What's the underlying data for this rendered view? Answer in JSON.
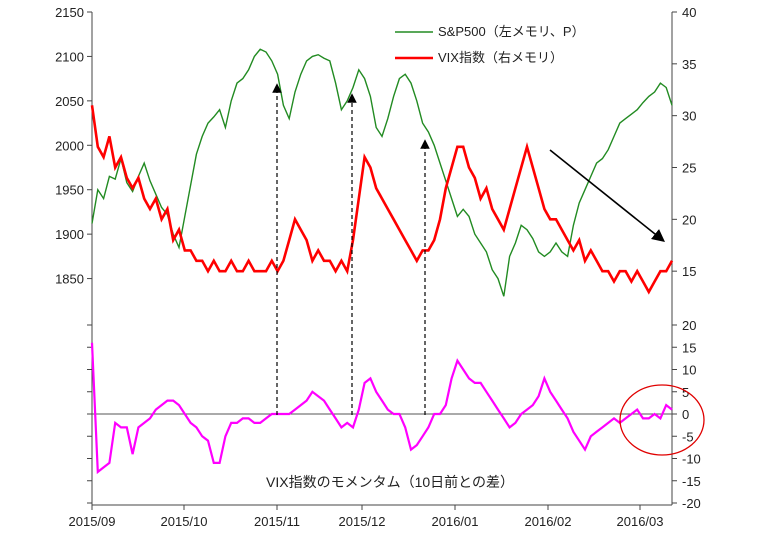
{
  "chart_data": {
    "type": "line",
    "x_labels": [
      "2015/09",
      "2015/10",
      "2015/11",
      "2015/12",
      "2016/01",
      "2016/02",
      "2016/03"
    ],
    "top_panel": {
      "left_axis": {
        "ylim": [
          1800,
          2150
        ],
        "ticks": [
          1850,
          1900,
          1950,
          2000,
          2050,
          2100,
          2150
        ]
      },
      "right_axis": {
        "ylim": [
          10,
          40
        ],
        "ticks": [
          15,
          20,
          25,
          30,
          35,
          40
        ]
      },
      "series": [
        {
          "name": "S&P500（左メモリ、P）",
          "axis": "left",
          "color": "#228b22",
          "values": [
            1912,
            1950,
            1940,
            1965,
            1962,
            1985,
            1958,
            1948,
            1965,
            1980,
            1960,
            1945,
            1930,
            1922,
            1900,
            1885,
            1920,
            1955,
            1990,
            2010,
            2025,
            2032,
            2040,
            2020,
            2050,
            2070,
            2075,
            2085,
            2100,
            2108,
            2105,
            2095,
            2080,
            2045,
            2030,
            2060,
            2080,
            2095,
            2100,
            2102,
            2098,
            2095,
            2070,
            2040,
            2050,
            2065,
            2085,
            2075,
            2055,
            2020,
            2010,
            2030,
            2055,
            2075,
            2080,
            2070,
            2050,
            2025,
            2015,
            2000,
            1980,
            1960,
            1940,
            1920,
            1928,
            1920,
            1900,
            1890,
            1880,
            1860,
            1850,
            1830,
            1875,
            1890,
            1910,
            1905,
            1895,
            1880,
            1875,
            1880,
            1890,
            1880,
            1875,
            1910,
            1935,
            1950,
            1965,
            1980,
            1985,
            1995,
            2010,
            2025,
            2030,
            2035,
            2040,
            2048,
            2055,
            2060,
            2070,
            2065,
            2045
          ]
        },
        {
          "name": "VIX指数（右メモリ）",
          "axis": "right",
          "color": "#ff0000",
          "values": [
            31,
            27,
            26,
            28,
            25,
            26,
            24,
            23,
            24,
            22,
            21,
            22,
            20,
            21,
            18,
            19,
            17,
            17,
            16,
            16,
            15,
            16,
            15,
            15,
            16,
            15,
            15,
            16,
            15,
            15,
            15,
            16,
            15,
            16,
            18,
            20,
            19,
            18,
            16,
            17,
            16,
            16,
            15,
            16,
            15,
            18,
            22,
            26,
            25,
            23,
            22,
            21,
            20,
            19,
            18,
            17,
            16,
            17,
            17,
            18,
            20,
            23,
            25,
            27,
            27,
            25,
            24,
            22,
            23,
            21,
            20,
            19,
            21,
            23,
            25,
            27,
            25,
            23,
            21,
            20,
            20,
            19,
            18,
            17,
            18,
            16,
            17,
            16,
            15,
            15,
            14,
            15,
            15,
            14,
            15,
            14,
            13,
            14,
            15,
            15,
            16
          ]
        }
      ],
      "annotations": [
        "dashed arrows marking VIX momentum spikes",
        "downtrend arrow over VIX in 2016/02–2016/03"
      ]
    },
    "bottom_panel": {
      "axis": {
        "side": "right",
        "ylim": [
          -20,
          20
        ],
        "ticks": [
          20,
          15,
          10,
          5,
          0,
          -5,
          -10,
          -15,
          -20
        ]
      },
      "title": "VIX指数のモメンタム（10日前との差）",
      "series": [
        {
          "name": "VIX指数のモメンタム（10日前との差）",
          "color": "#ff00ff",
          "values": [
            16,
            -13,
            -12,
            -11,
            -2,
            -3,
            -3,
            -9,
            -3,
            -2,
            -1,
            1,
            2,
            3,
            3,
            2,
            0,
            -2,
            -3,
            -5,
            -6,
            -11,
            -11,
            -5,
            -2,
            -2,
            -1,
            -1,
            -2,
            -2,
            -1,
            0,
            0,
            0,
            0,
            1,
            2,
            3,
            5,
            4,
            3,
            1,
            -1,
            -3,
            -2,
            -3,
            1,
            7,
            8,
            5,
            3,
            1,
            0,
            0,
            -3,
            -8,
            -7,
            -5,
            -3,
            0,
            0,
            2,
            8,
            12,
            10,
            8,
            7,
            7,
            5,
            3,
            1,
            -1,
            -3,
            -2,
            0,
            1,
            2,
            4,
            8,
            5,
            3,
            1,
            -1,
            -4,
            -6,
            -8,
            -5,
            -4,
            -3,
            -2,
            -1,
            -2,
            -1,
            0,
            1,
            -1,
            -1,
            0,
            -1,
            2,
            1
          ]
        }
      ],
      "highlight": "red circle around recent momentum (2016/03)"
    },
    "legend_placement": "top-right"
  }
}
